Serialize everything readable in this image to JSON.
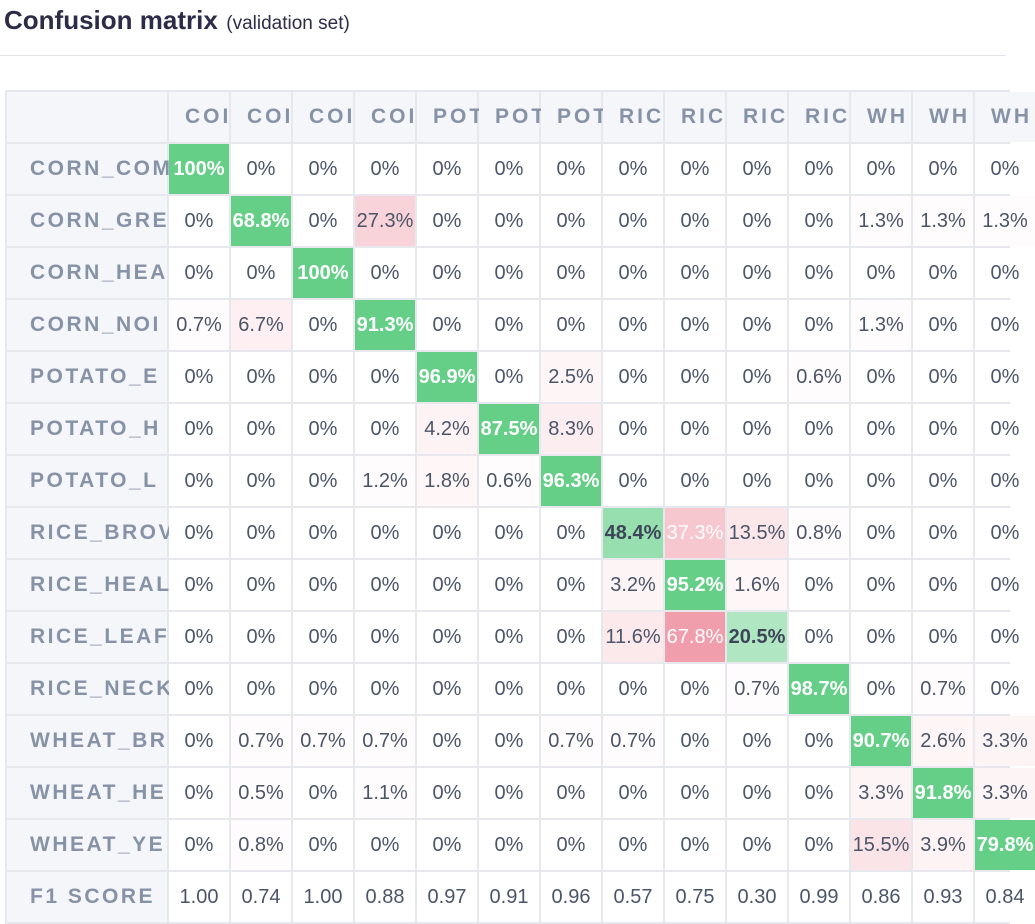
{
  "header": {
    "title": "Confusion matrix",
    "subtitle": "(validation set)"
  },
  "colors": {
    "correct": "#65cf88",
    "error": "#ea7a8c"
  },
  "chart_data": {
    "type": "heatmap",
    "title": "Confusion matrix",
    "subtitle": "(validation set)",
    "column_labels": [
      "COI",
      "COI",
      "COI",
      "COI",
      "POT",
      "POT",
      "POT",
      "RIC",
      "RIC",
      "RIC",
      "RIC",
      "WH",
      "WH",
      "WH"
    ],
    "row_labels": [
      "CORN_COM",
      "CORN_GRE",
      "CORN_HEA",
      "CORN_NOI",
      "POTATO_E",
      "POTATO_H",
      "POTATO_L",
      "RICE_BROV",
      "RICE_HEAL",
      "RICE_LEAF",
      "RICE_NECK",
      "WHEAT_BR",
      "WHEAT_HE",
      "WHEAT_YE"
    ],
    "values": [
      [
        "100%",
        "0%",
        "0%",
        "0%",
        "0%",
        "0%",
        "0%",
        "0%",
        "0%",
        "0%",
        "0%",
        "0%",
        "0%",
        "0%"
      ],
      [
        "0%",
        "68.8%",
        "0%",
        "27.3%",
        "0%",
        "0%",
        "0%",
        "0%",
        "0%",
        "0%",
        "0%",
        "1.3%",
        "1.3%",
        "1.3%"
      ],
      [
        "0%",
        "0%",
        "100%",
        "0%",
        "0%",
        "0%",
        "0%",
        "0%",
        "0%",
        "0%",
        "0%",
        "0%",
        "0%",
        "0%"
      ],
      [
        "0.7%",
        "6.7%",
        "0%",
        "91.3%",
        "0%",
        "0%",
        "0%",
        "0%",
        "0%",
        "0%",
        "0%",
        "1.3%",
        "0%",
        "0%"
      ],
      [
        "0%",
        "0%",
        "0%",
        "0%",
        "96.9%",
        "0%",
        "2.5%",
        "0%",
        "0%",
        "0%",
        "0.6%",
        "0%",
        "0%",
        "0%"
      ],
      [
        "0%",
        "0%",
        "0%",
        "0%",
        "4.2%",
        "87.5%",
        "8.3%",
        "0%",
        "0%",
        "0%",
        "0%",
        "0%",
        "0%",
        "0%"
      ],
      [
        "0%",
        "0%",
        "0%",
        "1.2%",
        "1.8%",
        "0.6%",
        "96.3%",
        "0%",
        "0%",
        "0%",
        "0%",
        "0%",
        "0%",
        "0%"
      ],
      [
        "0%",
        "0%",
        "0%",
        "0%",
        "0%",
        "0%",
        "0%",
        "48.4%",
        "37.3%",
        "13.5%",
        "0.8%",
        "0%",
        "0%",
        "0%"
      ],
      [
        "0%",
        "0%",
        "0%",
        "0%",
        "0%",
        "0%",
        "0%",
        "3.2%",
        "95.2%",
        "1.6%",
        "0%",
        "0%",
        "0%",
        "0%"
      ],
      [
        "0%",
        "0%",
        "0%",
        "0%",
        "0%",
        "0%",
        "0%",
        "11.6%",
        "67.8%",
        "20.5%",
        "0%",
        "0%",
        "0%",
        "0%"
      ],
      [
        "0%",
        "0%",
        "0%",
        "0%",
        "0%",
        "0%",
        "0%",
        "0%",
        "0%",
        "0.7%",
        "98.7%",
        "0%",
        "0.7%",
        "0%"
      ],
      [
        "0%",
        "0.7%",
        "0.7%",
        "0.7%",
        "0%",
        "0%",
        "0.7%",
        "0.7%",
        "0%",
        "0%",
        "0%",
        "90.7%",
        "2.6%",
        "3.3%"
      ],
      [
        "0%",
        "0.5%",
        "0%",
        "1.1%",
        "0%",
        "0%",
        "0%",
        "0%",
        "0%",
        "0%",
        "0%",
        "3.3%",
        "91.8%",
        "3.3%"
      ],
      [
        "0%",
        "0.8%",
        "0%",
        "0%",
        "0%",
        "0%",
        "0%",
        "0%",
        "0%",
        "0%",
        "0%",
        "15.5%",
        "3.9%",
        "79.8%"
      ]
    ],
    "f1_label": "F1 SCORE",
    "f1_scores": [
      "1.00",
      "0.74",
      "1.00",
      "0.88",
      "0.97",
      "0.91",
      "0.96",
      "0.57",
      "0.75",
      "0.30",
      "0.99",
      "0.86",
      "0.93",
      "0.84"
    ]
  }
}
